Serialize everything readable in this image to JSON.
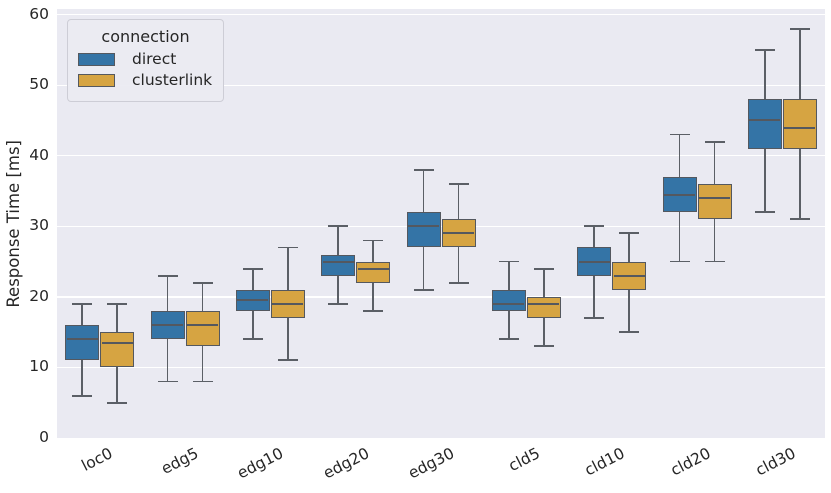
{
  "figure": {
    "background": "#ffffff",
    "plot_background": "#eaeaf2",
    "grid_color": "#ffffff",
    "box_edge_color": "#54585f",
    "whisker_color": "#5b5f66",
    "text_color": "#262626"
  },
  "ylabel": "Response Time [ms]",
  "legend": {
    "title": "connection",
    "items": [
      {
        "label": "direct",
        "color": "#3474a6"
      },
      {
        "label": "clusterlink",
        "color": "#d6a442"
      }
    ]
  },
  "chart_data": {
    "type": "grouped_boxplot",
    "title": "",
    "xlabel": "",
    "ylabel": "Response Time [ms]",
    "categories": [
      "loc0",
      "edg5",
      "edg10",
      "edg20",
      "edg30",
      "cld5",
      "cld10",
      "cld20",
      "cld30"
    ],
    "yticks": [
      0,
      10,
      20,
      30,
      40,
      50,
      60
    ],
    "ylim": [
      0,
      60.8
    ],
    "grid": "horizontal white gridlines on gray background",
    "legend_position": "upper left",
    "xtick_rotation_deg": 27,
    "series": [
      {
        "name": "direct",
        "color": "#3474a6",
        "boxes": [
          {
            "category": "loc0",
            "whisker_low": 6,
            "q1": 11,
            "median": 14,
            "q3": 16,
            "whisker_high": 19
          },
          {
            "category": "edg5",
            "whisker_low": 8,
            "q1": 14,
            "median": 16,
            "q3": 18,
            "whisker_high": 23
          },
          {
            "category": "edg10",
            "whisker_low": 14,
            "q1": 18,
            "median": 19.5,
            "q3": 21,
            "whisker_high": 24
          },
          {
            "category": "edg20",
            "whisker_low": 19,
            "q1": 23,
            "median": 25,
            "q3": 26,
            "whisker_high": 30
          },
          {
            "category": "edg30",
            "whisker_low": 21,
            "q1": 27,
            "median": 30,
            "q3": 32,
            "whisker_high": 38
          },
          {
            "category": "cld5",
            "whisker_low": 14,
            "q1": 18,
            "median": 19,
            "q3": 21,
            "whisker_high": 25
          },
          {
            "category": "cld10",
            "whisker_low": 17,
            "q1": 23,
            "median": 25,
            "q3": 27,
            "whisker_high": 30
          },
          {
            "category": "cld20",
            "whisker_low": 25,
            "q1": 32,
            "median": 34.5,
            "q3": 37,
            "whisker_high": 43
          },
          {
            "category": "cld30",
            "whisker_low": 32,
            "q1": 41,
            "median": 45,
            "q3": 48,
            "whisker_high": 55
          }
        ]
      },
      {
        "name": "clusterlink",
        "color": "#d6a442",
        "boxes": [
          {
            "category": "loc0",
            "whisker_low": 5,
            "q1": 10,
            "median": 13.5,
            "q3": 15,
            "whisker_high": 19
          },
          {
            "category": "edg5",
            "whisker_low": 8,
            "q1": 13,
            "median": 16,
            "q3": 18,
            "whisker_high": 22
          },
          {
            "category": "edg10",
            "whisker_low": 11,
            "q1": 17,
            "median": 19,
            "q3": 21,
            "whisker_high": 27
          },
          {
            "category": "edg20",
            "whisker_low": 18,
            "q1": 22,
            "median": 24,
            "q3": 25,
            "whisker_high": 28
          },
          {
            "category": "edg30",
            "whisker_low": 22,
            "q1": 27,
            "median": 29,
            "q3": 31,
            "whisker_high": 36
          },
          {
            "category": "cld5",
            "whisker_low": 13,
            "q1": 17,
            "median": 19,
            "q3": 20,
            "whisker_high": 24
          },
          {
            "category": "cld10",
            "whisker_low": 15,
            "q1": 21,
            "median": 23,
            "q3": 25,
            "whisker_high": 29
          },
          {
            "category": "cld20",
            "whisker_low": 25,
            "q1": 31,
            "median": 34,
            "q3": 36,
            "whisker_high": 42
          },
          {
            "category": "cld30",
            "whisker_low": 31,
            "q1": 41,
            "median": 44,
            "q3": 48,
            "whisker_high": 58
          }
        ]
      }
    ]
  }
}
